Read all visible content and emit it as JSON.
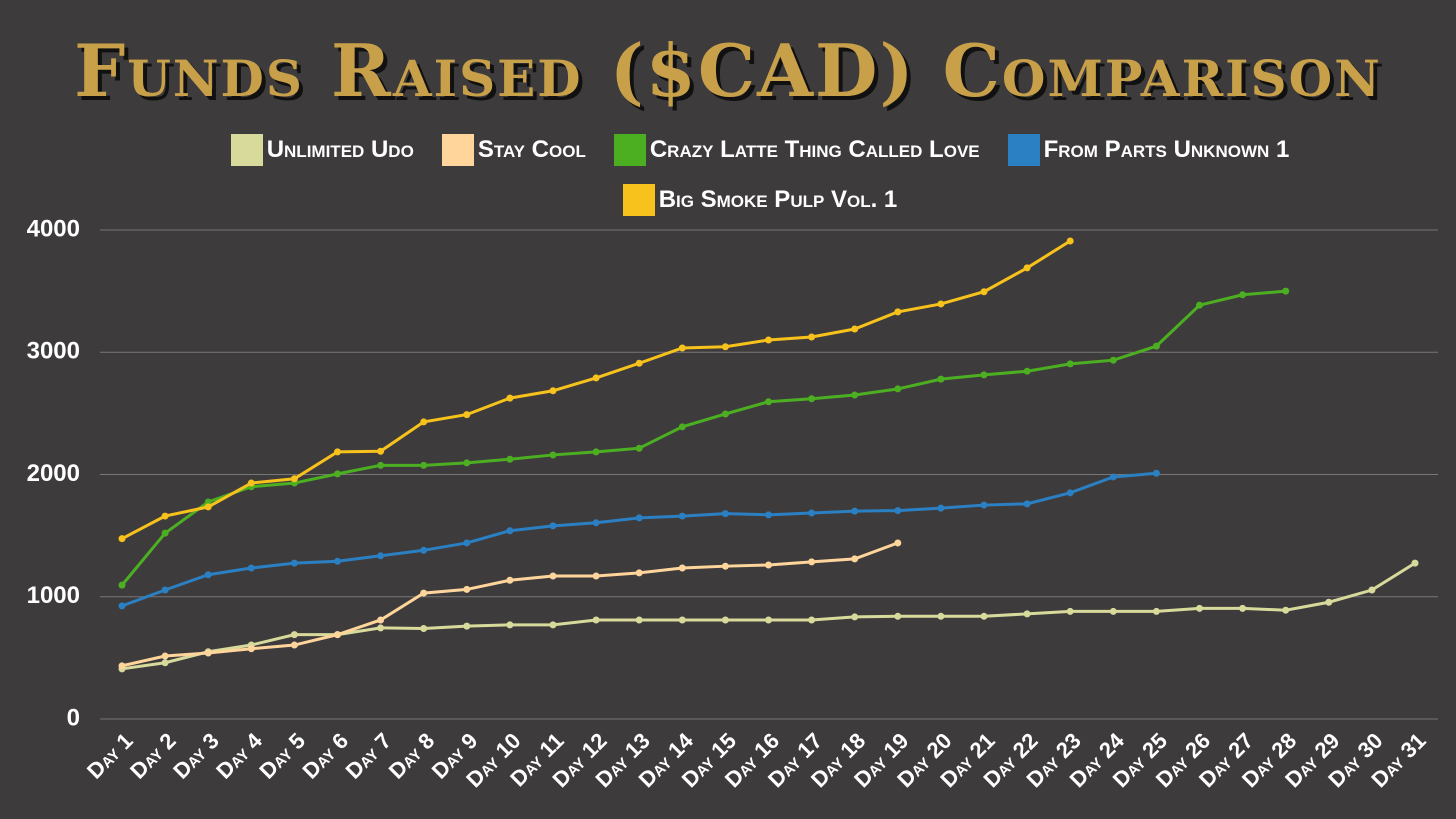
{
  "chart_data": {
    "type": "line",
    "title": "Funds Raised ($CAD) Comparison",
    "categories": [
      "Day 1",
      "Day 2",
      "Day 3",
      "Day 4",
      "Day 5",
      "Day 6",
      "Day 7",
      "Day 8",
      "Day 9",
      "Day 10",
      "Day 11",
      "Day 12",
      "Day 13",
      "Day 14",
      "Day 15",
      "Day 16",
      "Day 17",
      "Day 18",
      "Day 19",
      "Day 20",
      "Day 21",
      "Day 22",
      "Day 23",
      "Day 24",
      "Day 25",
      "Day 26",
      "Day 27",
      "Day 28",
      "Day 29",
      "Day 30",
      "Day 31"
    ],
    "series": [
      {
        "name": "Unlimited Udo",
        "color": "#d8da9c",
        "values": [
          410,
          460,
          550,
          605,
          690,
          690,
          745,
          740,
          760,
          770,
          770,
          810,
          810,
          810,
          810,
          810,
          810,
          835,
          840,
          840,
          840,
          860,
          880,
          880,
          880,
          905,
          905,
          890,
          955,
          1055,
          1275
        ]
      },
      {
        "name": "Stay Cool",
        "color": "#ffd59c",
        "values": [
          435,
          515,
          540,
          575,
          605,
          690,
          810,
          1030,
          1060,
          1135,
          1170,
          1170,
          1195,
          1235,
          1250,
          1260,
          1285,
          1310,
          1440,
          null,
          null,
          null,
          null,
          null,
          null,
          null,
          null,
          null,
          null,
          null,
          null
        ]
      },
      {
        "name": "Crazy Latte Thing Called Love",
        "color": "#4caf22",
        "values": [
          1095,
          1520,
          1775,
          1900,
          1930,
          2005,
          2075,
          2075,
          2095,
          2125,
          2160,
          2185,
          2215,
          2390,
          2495,
          2595,
          2620,
          2650,
          2700,
          2780,
          2815,
          2845,
          2905,
          2935,
          3050,
          3385,
          3470,
          3500,
          null,
          null,
          null
        ]
      },
      {
        "name": "From Parts Unknown 1",
        "color": "#2a80c2",
        "values": [
          925,
          1055,
          1180,
          1235,
          1275,
          1290,
          1335,
          1380,
          1440,
          1540,
          1580,
          1605,
          1645,
          1660,
          1680,
          1670,
          1685,
          1700,
          1705,
          1725,
          1750,
          1760,
          1850,
          1980,
          2010,
          null,
          null,
          null,
          null,
          null,
          null
        ]
      },
      {
        "name": "Big Smoke Pulp Vol. 1",
        "color": "#f8c21c",
        "values": [
          1475,
          1660,
          1735,
          1930,
          1965,
          2185,
          2190,
          2430,
          2490,
          2625,
          2685,
          2790,
          2910,
          3035,
          3045,
          3100,
          3125,
          3190,
          3330,
          3395,
          3495,
          3690,
          3910,
          null,
          null,
          null,
          null,
          null,
          null,
          null,
          null
        ]
      }
    ],
    "ylim": [
      0,
      4000
    ],
    "yticks": [
      0,
      1000,
      2000,
      3000,
      4000
    ],
    "grid": true
  }
}
